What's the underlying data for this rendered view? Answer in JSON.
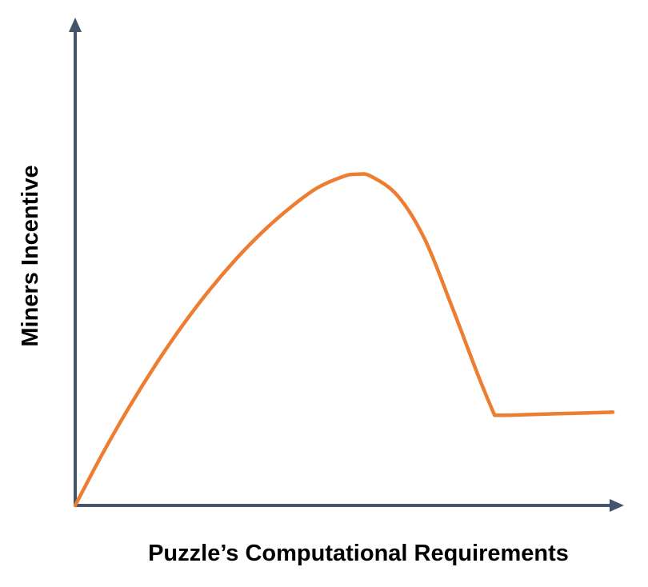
{
  "chart_data": {
    "type": "line",
    "title": "",
    "xlabel": "Puzzle’s Computational Requirements",
    "ylabel": "Miners Incentive",
    "xlim": [
      0,
      100
    ],
    "ylim": [
      0,
      100
    ],
    "grid": false,
    "axis_ticks": false,
    "series": [
      {
        "color": "#ed7d31",
        "x": [
          0,
          5,
          10,
          15,
          20,
          25,
          30,
          35,
          40,
          45,
          50,
          52.5,
          55,
          60,
          65,
          70,
          75,
          78,
          80,
          85,
          90,
          95,
          100
        ],
        "y": [
          0,
          13,
          25,
          36,
          46,
          55,
          63,
          70,
          76,
          81,
          84,
          84.5,
          84,
          79,
          68,
          51,
          33,
          23,
          23,
          23.2,
          23.4,
          23.6,
          23.8
        ]
      }
    ],
    "colors": {
      "axis": "#44546a",
      "curve": "#ed7d31"
    }
  }
}
